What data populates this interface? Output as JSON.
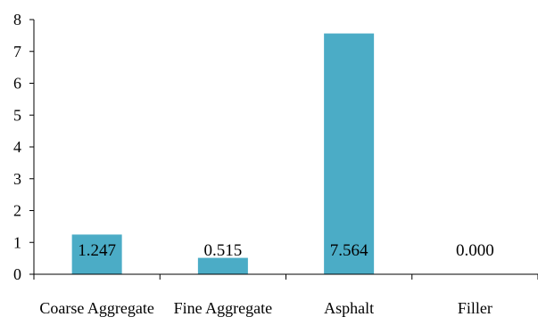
{
  "chart_data": {
    "type": "bar",
    "categories": [
      "Coarse Aggregate",
      "Fine Aggregate",
      "Asphalt",
      "Filler"
    ],
    "values": [
      1.247,
      0.515,
      7.564,
      0.0
    ],
    "data_labels": [
      "1.247",
      "0.515",
      "7.564",
      "0.000"
    ],
    "ylim": [
      0,
      8
    ],
    "yticks": [
      "0",
      "1",
      "2",
      "3",
      "4",
      "5",
      "6",
      "7",
      "8"
    ],
    "grid": false,
    "legend": "none",
    "bar_color": "#4BACC6"
  }
}
